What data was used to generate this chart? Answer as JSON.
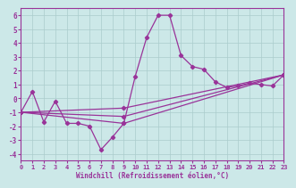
{
  "xlabel": "Windchill (Refroidissement éolien,°C)",
  "bg_color": "#cce8e8",
  "grid_color": "#aacccc",
  "line_color": "#993399",
  "xlim": [
    0,
    23
  ],
  "ylim": [
    -4.5,
    6.5
  ],
  "yticks": [
    -4,
    -3,
    -2,
    -1,
    0,
    1,
    2,
    3,
    4,
    5,
    6
  ],
  "xticks": [
    0,
    1,
    2,
    3,
    4,
    5,
    6,
    7,
    8,
    9,
    10,
    11,
    12,
    13,
    14,
    15,
    16,
    17,
    18,
    19,
    20,
    21,
    22,
    23
  ],
  "main_x": [
    0,
    1,
    2,
    3,
    4,
    5,
    6,
    7,
    8,
    9,
    10,
    11,
    12,
    13,
    14,
    15,
    16,
    17,
    18,
    19,
    20,
    21,
    22,
    23
  ],
  "main_y": [
    -1.0,
    0.5,
    -1.7,
    -0.2,
    -1.8,
    -1.8,
    -2.0,
    -3.7,
    -2.8,
    -1.8,
    1.6,
    4.4,
    6.0,
    6.0,
    3.1,
    2.3,
    2.1,
    1.2,
    0.8,
    0.9,
    1.1,
    1.0,
    0.9,
    1.7
  ],
  "line1_x": [
    0,
    9,
    23
  ],
  "line1_y": [
    -1.0,
    -0.7,
    1.7
  ],
  "line2_x": [
    0,
    9,
    23
  ],
  "line2_y": [
    -1.0,
    -1.3,
    1.7
  ],
  "line3_x": [
    0,
    9,
    23
  ],
  "line3_y": [
    -1.0,
    -1.8,
    1.7
  ]
}
